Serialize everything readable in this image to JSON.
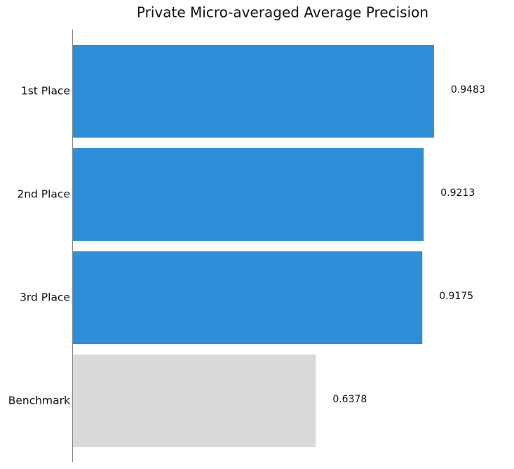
{
  "chart_data": {
    "type": "bar",
    "orientation": "horizontal",
    "title": "Private Micro-averaged Average Precision",
    "categories": [
      "1st Place",
      "2nd Place",
      "3rd Place",
      "Benchmark"
    ],
    "values": [
      0.9483,
      0.9213,
      0.9175,
      0.6378
    ],
    "colors": [
      "#2e8fd8",
      "#2e8fd8",
      "#2e8fd8",
      "#d9d9d9"
    ]
  }
}
